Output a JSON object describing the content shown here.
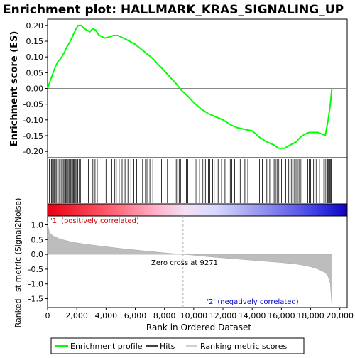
{
  "chart_data": {
    "type": "line",
    "title": "Enrichment plot: HALLMARK_KRAS_SIGNALING_UP",
    "panels": {
      "enrichment": {
        "ylabel": "Enrichment score (ES)",
        "ylim": [
          -0.22,
          0.22
        ],
        "yticks": [
          "0.20",
          "0.15",
          "0.10",
          "0.05",
          "0.00",
          "-0.05",
          "-0.10",
          "-0.15",
          "-0.20"
        ],
        "ytick_values": [
          0.2,
          0.15,
          0.1,
          0.05,
          0.0,
          -0.05,
          -0.1,
          -0.15,
          -0.2
        ],
        "series": [
          {
            "name": "Enrichment profile",
            "color": "#00ff00",
            "x": [
              0,
              150,
              300,
              500,
              700,
              900,
              1100,
              1300,
              1500,
              1700,
              1900,
              2100,
              2300,
              2500,
              2700,
              2900,
              3100,
              3300,
              3500,
              3700,
              3900,
              4100,
              4300,
              4500,
              4800,
              5200,
              5600,
              6000,
              6400,
              6800,
              7200,
              7600,
              8000,
              8400,
              8800,
              9200,
              9600,
              10000,
              10500,
              11000,
              11500,
              12000,
              12500,
              13000,
              13500,
              14000,
              14500,
              15000,
              15500,
              15800,
              16200,
              16600,
              17000,
              17300,
              17600,
              17900,
              18200,
              18500,
              18800,
              19000,
              19200,
              19350,
              19450
            ],
            "y": [
              0.0,
              0.02,
              0.04,
              0.065,
              0.085,
              0.095,
              0.11,
              0.13,
              0.145,
              0.165,
              0.185,
              0.2,
              0.2,
              0.19,
              0.185,
              0.18,
              0.19,
              0.185,
              0.17,
              0.165,
              0.16,
              0.162,
              0.165,
              0.168,
              0.168,
              0.16,
              0.15,
              0.14,
              0.125,
              0.11,
              0.095,
              0.075,
              0.055,
              0.035,
              0.015,
              -0.008,
              -0.025,
              -0.045,
              -0.065,
              -0.08,
              -0.09,
              -0.1,
              -0.115,
              -0.125,
              -0.13,
              -0.135,
              -0.155,
              -0.17,
              -0.18,
              -0.19,
              -0.19,
              -0.18,
              -0.17,
              -0.155,
              -0.145,
              -0.14,
              -0.14,
              -0.14,
              -0.145,
              -0.15,
              -0.1,
              -0.05,
              0.0
            ]
          }
        ],
        "legend": [
          "Enrichment profile",
          "Hits",
          "Ranking metric scores"
        ],
        "legend_colors": [
          "#00ff00",
          "#000000",
          "#c0c0c0"
        ],
        "legend_placement": "bottom"
      },
      "hits": {
        "hit_ranks": [
          120,
          180,
          260,
          330,
          400,
          470,
          540,
          620,
          700,
          780,
          850,
          930,
          1010,
          1080,
          1160,
          1240,
          1300,
          1350,
          1410,
          1470,
          1530,
          1590,
          1650,
          1710,
          1770,
          1830,
          1890,
          1950,
          2010,
          2070,
          2150,
          2250,
          2700,
          2800,
          3100,
          3250,
          3400,
          4000,
          4200,
          4400,
          4600,
          4700,
          4900,
          5100,
          5300,
          5500,
          5700,
          5900,
          6100,
          6500,
          6700,
          6800,
          7000,
          7200,
          7700,
          7800,
          8200,
          8800,
          8900,
          9000,
          9100,
          9500,
          9600,
          10100,
          10200,
          10400,
          10600,
          10700,
          10800,
          10900,
          11000,
          11100,
          11300,
          11400,
          11600,
          11700,
          11900,
          12100,
          12200,
          12500,
          12600,
          12800,
          12900,
          13100,
          13200,
          13500,
          13700,
          14400,
          14500,
          14700,
          15000,
          15200,
          15500,
          15600,
          15700,
          15800,
          15900,
          16000,
          16100,
          16300,
          16500,
          16600,
          16700,
          16800,
          16900,
          17000,
          17100,
          17200,
          17300,
          17400,
          17800,
          17900,
          18000,
          18100,
          18200,
          18300,
          18400,
          18600,
          18900,
          19000,
          19100,
          19150,
          19200,
          19250,
          19300,
          19350,
          19400
        ]
      },
      "ranking": {
        "ylabel": "Ranked list metric (Signal2Noise)",
        "xlabel": "Rank in Ordered Dataset",
        "ylim": [
          -1.8,
          1.3
        ],
        "yticks": [
          "1.0",
          "0.5",
          "0.0",
          "-0.5",
          "-1.0",
          "-1.5"
        ],
        "ytick_values": [
          1.0,
          0.5,
          0.0,
          -0.5,
          -1.0,
          -1.5
        ],
        "xticks": [
          "0",
          "2,000",
          "4,000",
          "6,000",
          "8,000",
          "10,000",
          "12,000",
          "14,000",
          "16,000",
          "18,000",
          "20,000"
        ],
        "xtick_values": [
          0,
          2000,
          4000,
          6000,
          8000,
          10000,
          12000,
          14000,
          16000,
          18000,
          20000
        ],
        "xlim": [
          0,
          20500
        ],
        "series": [
          {
            "name": "Ranking metric scores",
            "color": "#c0c0c0",
            "x": [
              0,
              30,
              100,
              200,
              400,
              700,
              1000,
              1500,
              2000,
              3000,
              4000,
              5000,
              6000,
              7000,
              8000,
              9000,
              9271,
              10000,
              11000,
              12000,
              13000,
              14000,
              15000,
              16000,
              17000,
              17500,
              18000,
              18500,
              19000,
              19200,
              19350,
              19400,
              19450
            ],
            "y": [
              1.1,
              0.95,
              0.8,
              0.7,
              0.62,
              0.55,
              0.5,
              0.44,
              0.39,
              0.32,
              0.26,
              0.2,
              0.15,
              0.1,
              0.05,
              0.01,
              0.0,
              -0.03,
              -0.08,
              -0.12,
              -0.16,
              -0.2,
              -0.24,
              -0.28,
              -0.33,
              -0.37,
              -0.42,
              -0.5,
              -0.62,
              -0.75,
              -1.0,
              -1.4,
              -1.75
            ]
          }
        ],
        "annotations": [
          "Zero cross at 9271",
          "'1' (positively correlated)",
          "'2' (negatively correlated)"
        ],
        "zero_cross": 9271,
        "positive_color": "#ff0000",
        "negative_color": "#0000cc"
      }
    }
  }
}
